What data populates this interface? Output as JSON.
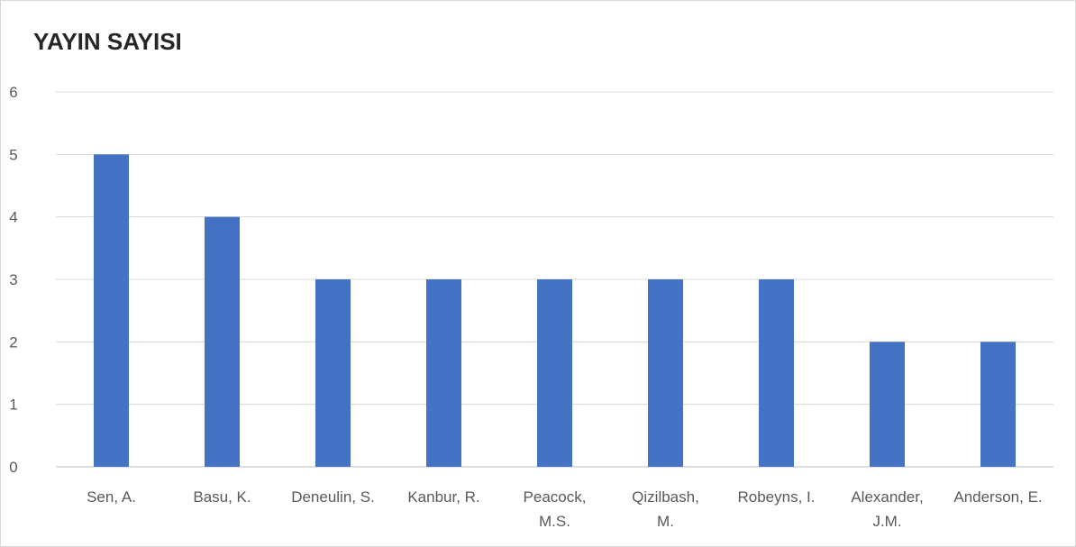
{
  "chart_data": {
    "type": "bar",
    "title": "YAYIN SAYISI",
    "categories": [
      [
        "Sen, A."
      ],
      [
        "Basu, K."
      ],
      [
        "Deneulin, S."
      ],
      [
        "Kanbur, R."
      ],
      [
        "Peacock,",
        "M.S."
      ],
      [
        "Qizilbash,",
        "M."
      ],
      [
        "Robeyns, I."
      ],
      [
        "Alexander,",
        "J.M."
      ],
      [
        "Anderson, E."
      ]
    ],
    "values": [
      5,
      4,
      3,
      3,
      3,
      3,
      3,
      2,
      2
    ],
    "ylim": [
      0,
      6
    ],
    "yticks": [
      0,
      1,
      2,
      3,
      4,
      5,
      6
    ],
    "grid": true,
    "legend": "none",
    "bar_color": "#4472c4",
    "grid_color": "#d9d9d9",
    "axis_color": "#bfbfbf"
  }
}
